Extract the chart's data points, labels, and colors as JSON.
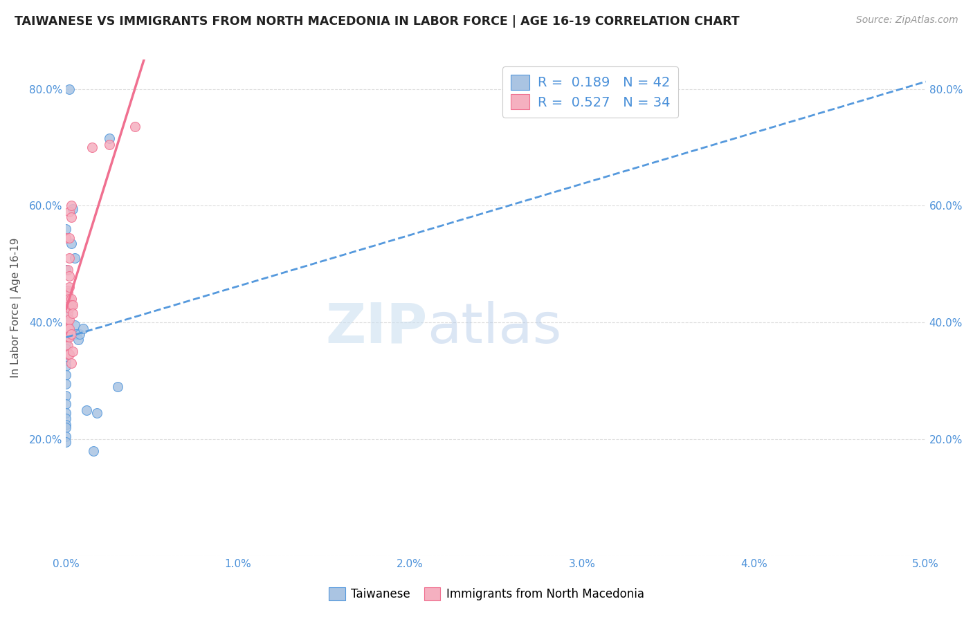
{
  "title": "TAIWANESE VS IMMIGRANTS FROM NORTH MACEDONIA IN LABOR FORCE | AGE 16-19 CORRELATION CHART",
  "source": "Source: ZipAtlas.com",
  "ylabel": "In Labor Force | Age 16-19",
  "xlim": [
    0.0,
    0.05
  ],
  "ylim": [
    0.0,
    0.85
  ],
  "xticks": [
    0.0,
    0.01,
    0.02,
    0.03,
    0.04,
    0.05
  ],
  "yticks": [
    0.0,
    0.2,
    0.4,
    0.6,
    0.8
  ],
  "xticklabels": [
    "0.0%",
    "1.0%",
    "2.0%",
    "3.0%",
    "4.0%",
    "5.0%"
  ],
  "yticklabels": [
    "",
    "20.0%",
    "40.0%",
    "60.0%",
    "80.0%"
  ],
  "blue_R": 0.189,
  "blue_N": 42,
  "pink_R": 0.527,
  "pink_N": 34,
  "blue_color": "#aac4e2",
  "pink_color": "#f5b0c0",
  "blue_line_color": "#5599dd",
  "pink_line_color": "#f07090",
  "blue_scatter": [
    [
      0.0,
      0.56
    ],
    [
      0.0,
      0.49
    ],
    [
      0.0,
      0.455
    ],
    [
      0.0,
      0.45
    ],
    [
      0.0,
      0.44
    ],
    [
      0.0,
      0.43
    ],
    [
      0.0,
      0.425
    ],
    [
      0.0,
      0.415
    ],
    [
      0.0,
      0.41
    ],
    [
      0.0,
      0.4
    ],
    [
      0.0,
      0.395
    ],
    [
      0.0,
      0.385
    ],
    [
      0.0,
      0.375
    ],
    [
      0.0,
      0.365
    ],
    [
      0.0,
      0.355
    ],
    [
      0.0,
      0.345
    ],
    [
      0.0,
      0.335
    ],
    [
      0.0,
      0.325
    ],
    [
      0.0,
      0.31
    ],
    [
      0.0,
      0.295
    ],
    [
      0.0,
      0.275
    ],
    [
      0.0,
      0.26
    ],
    [
      0.0,
      0.245
    ],
    [
      0.0,
      0.235
    ],
    [
      0.0,
      0.225
    ],
    [
      0.0,
      0.22
    ],
    [
      0.0,
      0.205
    ],
    [
      0.0,
      0.195
    ],
    [
      0.0002,
      0.8
    ],
    [
      0.0003,
      0.535
    ],
    [
      0.0004,
      0.595
    ],
    [
      0.0005,
      0.51
    ],
    [
      0.0005,
      0.395
    ],
    [
      0.0006,
      0.38
    ],
    [
      0.0007,
      0.37
    ],
    [
      0.0008,
      0.38
    ],
    [
      0.001,
      0.39
    ],
    [
      0.0012,
      0.25
    ],
    [
      0.0016,
      0.18
    ],
    [
      0.0018,
      0.245
    ],
    [
      0.0025,
      0.715
    ],
    [
      0.003,
      0.29
    ]
  ],
  "pink_scatter": [
    [
      0.0,
      0.545
    ],
    [
      0.0001,
      0.49
    ],
    [
      0.0001,
      0.455
    ],
    [
      0.0001,
      0.45
    ],
    [
      0.0001,
      0.435
    ],
    [
      0.0001,
      0.415
    ],
    [
      0.0001,
      0.4
    ],
    [
      0.0001,
      0.39
    ],
    [
      0.0001,
      0.375
    ],
    [
      0.0001,
      0.36
    ],
    [
      0.0001,
      0.345
    ],
    [
      0.0002,
      0.59
    ],
    [
      0.0002,
      0.545
    ],
    [
      0.0002,
      0.51
    ],
    [
      0.0002,
      0.48
    ],
    [
      0.0002,
      0.46
    ],
    [
      0.0002,
      0.44
    ],
    [
      0.0002,
      0.425
    ],
    [
      0.0002,
      0.405
    ],
    [
      0.0002,
      0.39
    ],
    [
      0.0002,
      0.375
    ],
    [
      0.0002,
      0.345
    ],
    [
      0.0003,
      0.6
    ],
    [
      0.0003,
      0.58
    ],
    [
      0.0003,
      0.44
    ],
    [
      0.0003,
      0.43
    ],
    [
      0.0003,
      0.38
    ],
    [
      0.0003,
      0.33
    ],
    [
      0.0004,
      0.43
    ],
    [
      0.0004,
      0.415
    ],
    [
      0.0004,
      0.35
    ],
    [
      0.0015,
      0.7
    ],
    [
      0.0025,
      0.705
    ],
    [
      0.004,
      0.735
    ]
  ],
  "watermark_zip": "ZIP",
  "watermark_atlas": "atlas",
  "background_color": "#ffffff",
  "grid_color": "#dddddd",
  "legend_text_color": "#4a90d9",
  "tick_color": "#4a90d9"
}
